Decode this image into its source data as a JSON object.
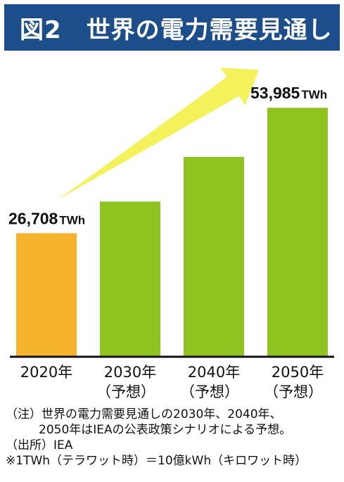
{
  "title": "図2　世界の電力需要見通し",
  "colors": {
    "header_bg": "#1d4e8c",
    "bar_2020": "#f5b32e",
    "bar_forecast": "#8fc31f",
    "arrow": "#f4f25a"
  },
  "chart_data": {
    "type": "bar",
    "title": "図2　世界の電力需要見通し",
    "categories": [
      "2020年",
      "2030年",
      "2040年",
      "2050年"
    ],
    "category_sublabels": [
      "",
      "（予想）",
      "（予想）",
      "（予想）"
    ],
    "values": [
      26708,
      33600,
      43300,
      53985
    ],
    "unit": "TWh",
    "data_labels": [
      {
        "index": 0,
        "number": "26,708",
        "unit": "TWh"
      },
      {
        "index": 3,
        "number": "53,985",
        "unit": "TWh"
      }
    ],
    "ylim": [
      0,
      56000
    ],
    "grid": false,
    "annotations": [
      "rising-arrow"
    ]
  },
  "notes": [
    "（注）世界の電力需要見通しの2030年、2040年、",
    "2050年はIEAの公表政策シナリオによる予想。",
    "（出所）IEA",
    "※1TWh（テラワット時）＝10億kWh（キロワット時）"
  ]
}
